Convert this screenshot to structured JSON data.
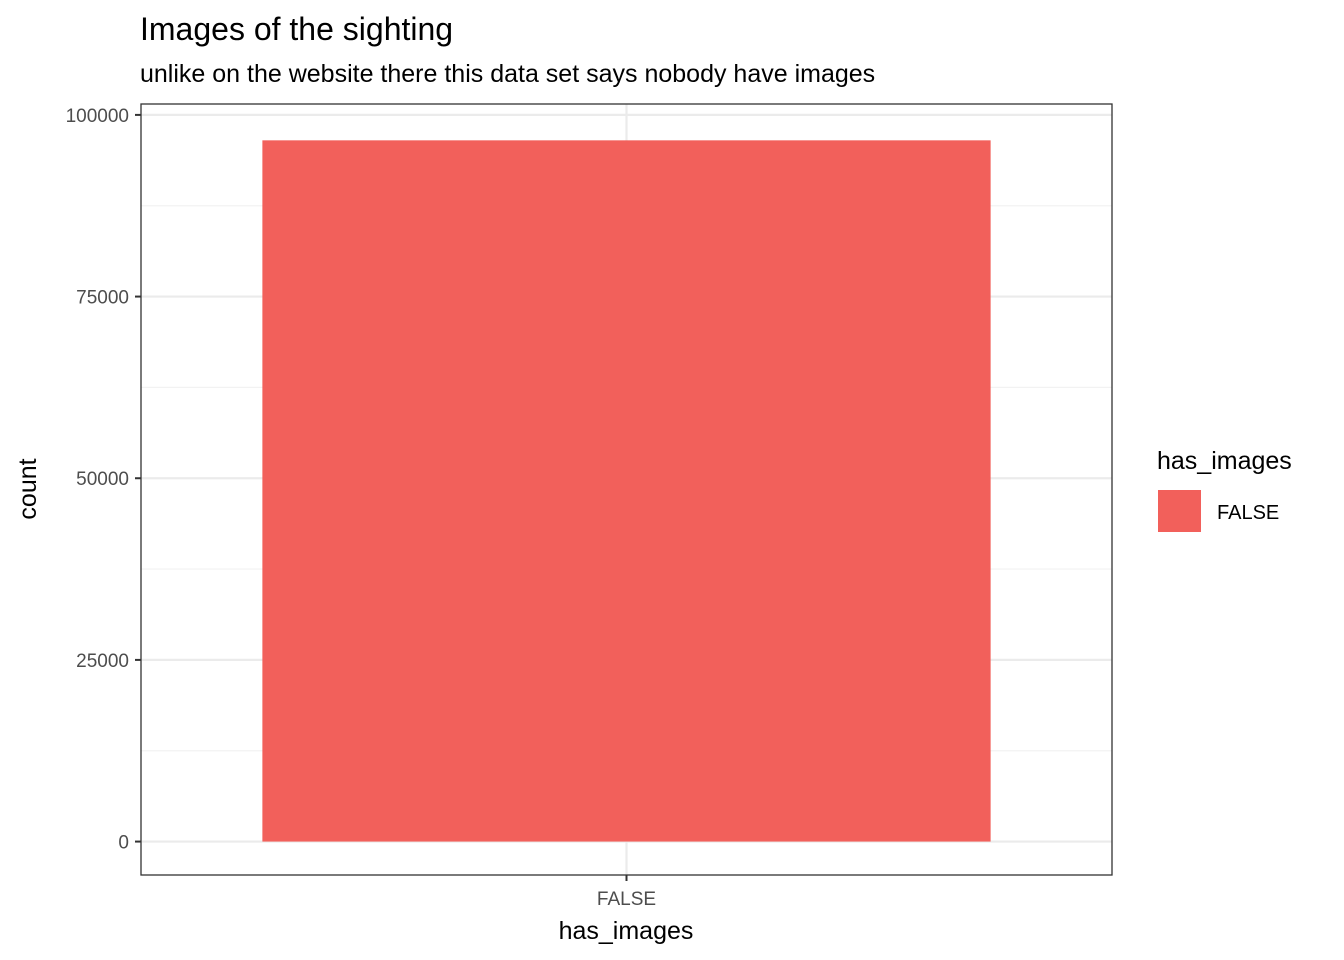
{
  "chart_data": {
    "type": "bar",
    "title": "Images of the sighting",
    "subtitle": "unlike on the website there this data set says nobody have images",
    "xlabel": "has_images",
    "ylabel": "count",
    "categories": [
      "FALSE"
    ],
    "values": [
      96500
    ],
    "ylim": [
      -4600,
      101500
    ],
    "yticks": [
      0,
      25000,
      50000,
      75000,
      100000
    ],
    "ytick_labels": [
      "0",
      "25000",
      "50000",
      "75000",
      "100000"
    ],
    "grid": true,
    "legend": {
      "title": "has_images",
      "position": "right",
      "entries": [
        {
          "label": "FALSE",
          "color": "#F2605B"
        }
      ]
    },
    "colors": {
      "bar": "#F2605B",
      "grid_major": "#EBEBEB",
      "grid_minor": "#F2F2F2",
      "panel_border": "#333333"
    }
  }
}
